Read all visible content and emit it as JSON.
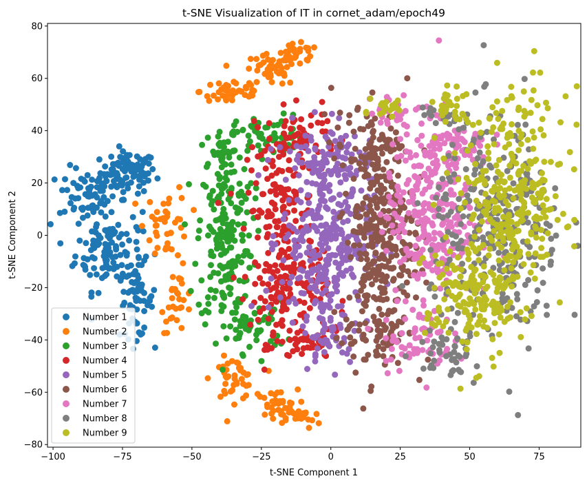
{
  "chart_data": {
    "type": "scatter",
    "title": "t-SNE Visualization of IT in cornet_adam/epoch49",
    "xlabel": "t-SNE Component 1",
    "ylabel": "t-SNE Component 2",
    "xlim": [
      -102,
      90
    ],
    "ylim": [
      -81,
      81
    ],
    "xticks": [
      -100,
      -75,
      -50,
      -25,
      0,
      25,
      50,
      75
    ],
    "yticks": [
      -80,
      -60,
      -40,
      -20,
      0,
      20,
      40,
      60,
      80
    ],
    "legend_position": "lower-left",
    "series": [
      {
        "name": "Number 1",
        "color": "#1f77b4",
        "clusters": [
          {
            "cx": -73,
            "cy": 24,
            "sx": 5,
            "sy": 4,
            "n": 90
          },
          {
            "cx": -88,
            "cy": 16,
            "sx": 5,
            "sy": 5,
            "n": 60
          },
          {
            "cx": -80,
            "cy": -5,
            "sx": 6,
            "sy": 8,
            "n": 120
          },
          {
            "cx": -70,
            "cy": -25,
            "sx": 3,
            "sy": 7,
            "n": 60
          }
        ]
      },
      {
        "name": "Number 2",
        "color": "#ff7f0e",
        "clusters": [
          {
            "cx": -35,
            "cy": 55,
            "sx": 6,
            "sy": 3,
            "n": 45
          },
          {
            "cx": -22,
            "cy": 63,
            "sx": 5,
            "sy": 3,
            "n": 40
          },
          {
            "cx": -12,
            "cy": 69,
            "sx": 4,
            "sy": 2,
            "n": 30
          },
          {
            "cx": -59,
            "cy": 5,
            "sx": 4,
            "sy": 7,
            "n": 40
          },
          {
            "cx": -55,
            "cy": -25,
            "sx": 3,
            "sy": 6,
            "n": 30
          },
          {
            "cx": -35,
            "cy": -55,
            "sx": 4,
            "sy": 4,
            "n": 40
          },
          {
            "cx": -20,
            "cy": -65,
            "sx": 4,
            "sy": 3,
            "n": 35
          },
          {
            "cx": -10,
            "cy": -70,
            "sx": 3,
            "sy": 2,
            "n": 20
          }
        ]
      },
      {
        "name": "Number 3",
        "color": "#2ca02c",
        "clusters": [
          {
            "cx": -38,
            "cy": 0,
            "sx": 5,
            "sy": 18,
            "n": 200
          },
          {
            "cx": -22,
            "cy": 38,
            "sx": 6,
            "sy": 4,
            "n": 60
          },
          {
            "cx": -38,
            "cy": 30,
            "sx": 3,
            "sy": 5,
            "n": 30
          },
          {
            "cx": -28,
            "cy": -35,
            "sx": 6,
            "sy": 5,
            "n": 50
          }
        ]
      },
      {
        "name": "Number 4",
        "color": "#d62728",
        "clusters": [
          {
            "cx": -18,
            "cy": 10,
            "sx": 6,
            "sy": 15,
            "n": 150
          },
          {
            "cx": -15,
            "cy": -22,
            "sx": 7,
            "sy": 10,
            "n": 120
          },
          {
            "cx": -10,
            "cy": 38,
            "sx": 6,
            "sy": 5,
            "n": 50
          },
          {
            "cx": -8,
            "cy": -42,
            "sx": 6,
            "sy": 3,
            "n": 40
          }
        ]
      },
      {
        "name": "Number 5",
        "color": "#9467bd",
        "clusters": [
          {
            "cx": -2,
            "cy": 0,
            "sx": 8,
            "sy": 18,
            "n": 350
          },
          {
            "cx": 0,
            "cy": 30,
            "sx": 7,
            "sy": 7,
            "n": 60
          },
          {
            "cx": 0,
            "cy": -38,
            "sx": 5,
            "sy": 6,
            "n": 40
          }
        ]
      },
      {
        "name": "Number 6",
        "color": "#8c564b",
        "clusters": [
          {
            "cx": 18,
            "cy": 0,
            "sx": 6,
            "sy": 22,
            "n": 350
          },
          {
            "cx": 14,
            "cy": 35,
            "sx": 7,
            "sy": 6,
            "n": 40
          },
          {
            "cx": 16,
            "cy": -40,
            "sx": 7,
            "sy": 6,
            "n": 40
          }
        ]
      },
      {
        "name": "Number 7",
        "color": "#e377c2",
        "clusters": [
          {
            "cx": 36,
            "cy": 10,
            "sx": 8,
            "sy": 18,
            "n": 300
          },
          {
            "cx": 22,
            "cy": 48,
            "sx": 4,
            "sy": 3,
            "n": 20
          },
          {
            "cx": 30,
            "cy": -40,
            "sx": 7,
            "sy": 6,
            "n": 60
          },
          {
            "cx": 45,
            "cy": 35,
            "sx": 6,
            "sy": 4,
            "n": 50
          }
        ]
      },
      {
        "name": "Number 8",
        "color": "#7f7f7f",
        "clusters": [
          {
            "cx": 60,
            "cy": 0,
            "sx": 12,
            "sy": 22,
            "n": 300
          },
          {
            "cx": 40,
            "cy": 45,
            "sx": 4,
            "sy": 3,
            "n": 20
          },
          {
            "cx": 42,
            "cy": -45,
            "sx": 6,
            "sy": 4,
            "n": 40
          }
        ]
      },
      {
        "name": "Number 9",
        "color": "#bcbd22",
        "clusters": [
          {
            "cx": 65,
            "cy": 15,
            "sx": 10,
            "sy": 20,
            "n": 320
          },
          {
            "cx": 44,
            "cy": 48,
            "sx": 3,
            "sy": 4,
            "n": 30
          },
          {
            "cx": 21,
            "cy": 49,
            "sx": 3,
            "sy": 2,
            "n": 20
          },
          {
            "cx": 50,
            "cy": -25,
            "sx": 8,
            "sy": 12,
            "n": 150
          }
        ]
      }
    ]
  }
}
